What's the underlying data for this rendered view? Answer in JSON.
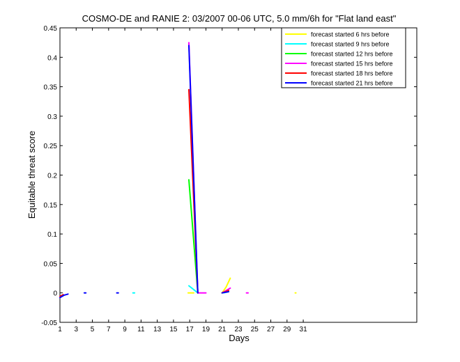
{
  "chart_data": {
    "type": "line",
    "title": "COSMO-DE and RANIE 2: 03/2007 00-06 UTC, 5.0 mm/6h for \"Flat land east\"",
    "xlabel": "Days",
    "ylabel": "Equitable threat score",
    "xlim": [
      1,
      45
    ],
    "ylim": [
      -0.05,
      0.45
    ],
    "x_ticks": [
      1,
      3,
      5,
      7,
      9,
      11,
      13,
      15,
      17,
      19,
      21,
      23,
      25,
      27,
      29,
      31
    ],
    "y_ticks": [
      -0.05,
      0,
      0.05,
      0.1,
      0.15,
      0.2,
      0.25,
      0.3,
      0.35,
      0.4,
      0.45
    ],
    "y_tick_labels": [
      "-0.05",
      "0",
      "0.05",
      "0.1",
      "0.15",
      "0.2",
      "0.25",
      "0.3",
      "0.35",
      "0.4",
      "0.45"
    ],
    "grid": false,
    "legend_position": "top-right",
    "series": [
      {
        "name": "forecast started 6 hrs before",
        "color": "#ffff00",
        "segments": [
          [
            [
              16.8,
              0.0
            ],
            [
              17.5,
              0.0
            ]
          ],
          [
            [
              21.0,
              0.0
            ],
            [
              21.5,
              0.01
            ],
            [
              22.0,
              0.025
            ]
          ],
          [
            [
              30.0,
              0.0
            ],
            [
              30.1,
              0.0
            ]
          ]
        ]
      },
      {
        "name": "forecast started 9 hrs before",
        "color": "#00ffff",
        "segments": [
          [
            [
              10.0,
              0.0
            ],
            [
              10.2,
              0.0
            ]
          ],
          [
            [
              16.9,
              0.012
            ],
            [
              18.0,
              0.0
            ]
          ],
          [
            [
              21.2,
              0.0
            ],
            [
              21.8,
              0.002
            ]
          ]
        ]
      },
      {
        "name": "forecast started 12 hrs before",
        "color": "#00ff00",
        "segments": [
          [
            [
              16.9,
              0.192
            ],
            [
              18.0,
              0.0
            ]
          ],
          [
            [
              21.0,
              0.0
            ],
            [
              21.8,
              0.003
            ]
          ]
        ]
      },
      {
        "name": "forecast started 15 hrs before",
        "color": "#ff00ff",
        "segments": [
          [
            [
              16.9,
              0.425
            ],
            [
              18.0,
              0.0
            ],
            [
              19.0,
              0.0
            ]
          ],
          [
            [
              21.0,
              0.0
            ],
            [
              22.0,
              0.008
            ]
          ],
          [
            [
              24.0,
              0.0
            ],
            [
              24.2,
              0.0
            ]
          ]
        ]
      },
      {
        "name": "forecast started 18 hrs before",
        "color": "#ff0000",
        "segments": [
          [
            [
              1.0,
              -0.006
            ],
            [
              1.4,
              -0.003
            ]
          ],
          [
            [
              16.9,
              0.345
            ],
            [
              18.0,
              0.0
            ]
          ],
          [
            [
              21.0,
              0.0
            ],
            [
              21.8,
              0.004
            ]
          ]
        ]
      },
      {
        "name": "forecast started 21 hrs before",
        "color": "#0000ff",
        "segments": [
          [
            [
              1.0,
              -0.008
            ],
            [
              1.5,
              -0.004
            ],
            [
              2.0,
              -0.002
            ]
          ],
          [
            [
              4.0,
              0.0
            ],
            [
              4.2,
              0.0
            ]
          ],
          [
            [
              8.0,
              0.0
            ],
            [
              8.2,
              0.0
            ]
          ],
          [
            [
              16.9,
              0.42
            ],
            [
              18.0,
              0.0
            ]
          ],
          [
            [
              21.0,
              0.0
            ],
            [
              21.8,
              0.002
            ]
          ]
        ]
      }
    ]
  }
}
